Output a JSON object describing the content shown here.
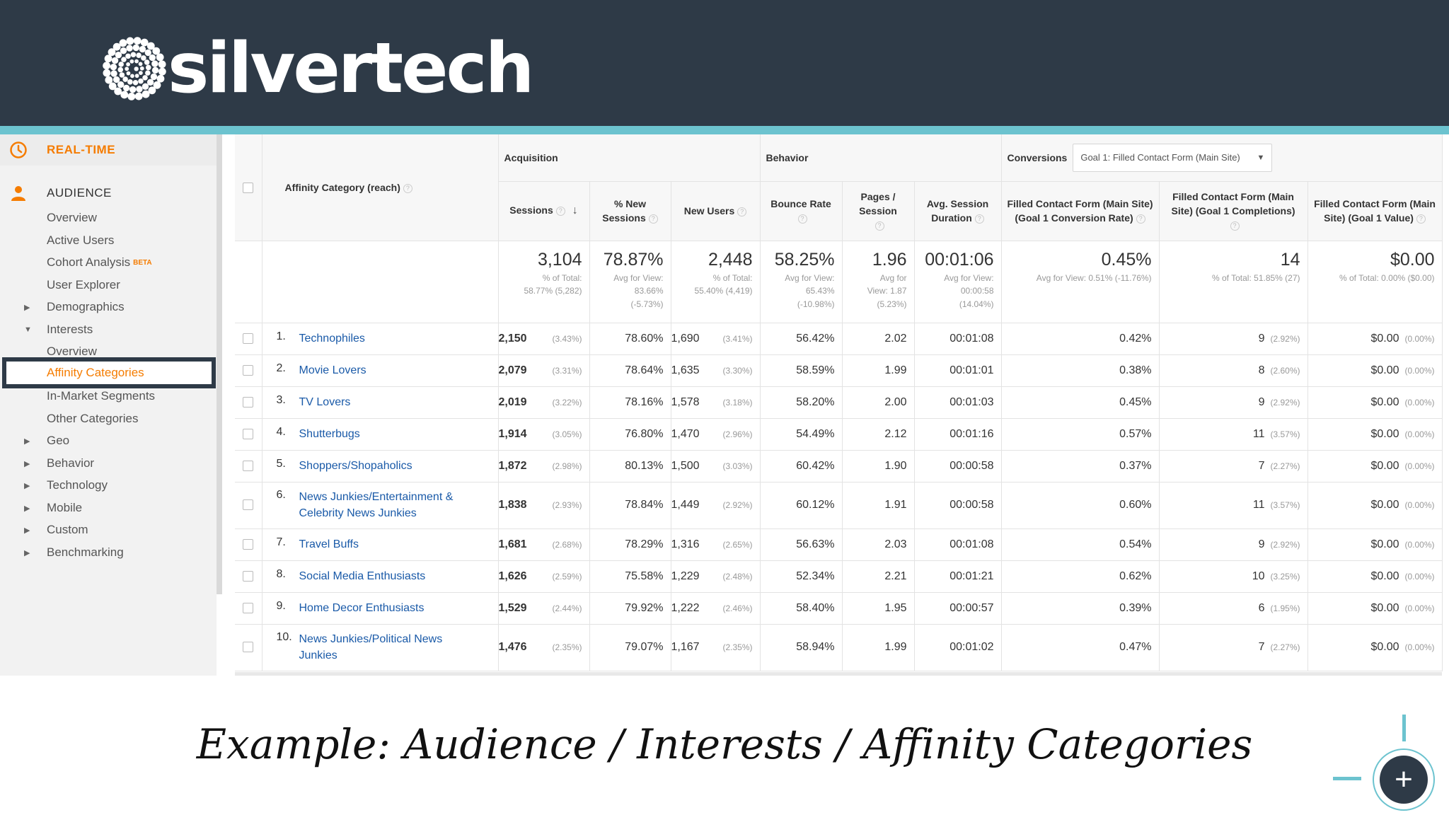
{
  "brand": {
    "name": "silvertech"
  },
  "sidebar": {
    "realtime_label": "REAL-TIME",
    "audience_label": "AUDIENCE",
    "items": [
      {
        "label": "Overview",
        "caret": ""
      },
      {
        "label": "Active Users",
        "caret": ""
      },
      {
        "label": "Cohort Analysis",
        "caret": "",
        "badge": "BETA"
      },
      {
        "label": "User Explorer",
        "caret": ""
      },
      {
        "label": "Demographics",
        "caret": "▶"
      },
      {
        "label": "Interests",
        "caret": "▼"
      },
      {
        "label": "Overview",
        "caret": ""
      },
      {
        "label": "Affinity Categories",
        "caret": ""
      },
      {
        "label": "In-Market Segments",
        "caret": ""
      },
      {
        "label": "Other Categories",
        "caret": ""
      },
      {
        "label": "Geo",
        "caret": "▶"
      },
      {
        "label": "Behavior",
        "caret": "▶"
      },
      {
        "label": "Technology",
        "caret": "▶"
      },
      {
        "label": "Mobile",
        "caret": "▶"
      },
      {
        "label": "Custom",
        "caret": "▶"
      },
      {
        "label": "Benchmarking",
        "caret": "▶"
      }
    ],
    "selected_index": 7
  },
  "table": {
    "dimension_header": "Affinity Category (reach)",
    "groups": {
      "acquisition": "Acquisition",
      "behavior": "Behavior",
      "conversions": "Conversions",
      "goal_select": "Goal 1: Filled Contact Form (Main Site)"
    },
    "columns": {
      "sessions": "Sessions",
      "new_sessions_1": "% New",
      "new_sessions_2": "Sessions",
      "new_users": "New Users",
      "bounce_rate": "Bounce Rate",
      "pages_1": "Pages /",
      "pages_2": "Session",
      "duration_1": "Avg. Session",
      "duration_2": "Duration",
      "conv_rate_1": "Filled Contact Form (Main Site)",
      "conv_rate_2": "(Goal 1 Conversion Rate)",
      "completions_1": "Filled Contact Form (Main",
      "completions_2": "Site) (Goal 1 Completions)",
      "value_1": "Filled Contact Form (Main",
      "value_2": "Site) (Goal 1 Value)"
    },
    "totals": {
      "sessions": "3,104",
      "sessions_sub": "% of Total:\n58.77% (5,282)",
      "new_sessions": "78.87%",
      "new_sessions_sub": "Avg for View:\n83.66%\n(-5.73%)",
      "new_users": "2,448",
      "new_users_sub": "% of Total:\n55.40% (4,419)",
      "bounce_rate": "58.25%",
      "bounce_rate_sub": "Avg for View:\n65.43%\n(-10.98%)",
      "pages": "1.96",
      "pages_sub": "Avg for\nView: 1.87\n(5.23%)",
      "duration": "00:01:06",
      "duration_sub": "Avg for View:\n00:00:58\n(14.04%)",
      "conv_rate": "0.45%",
      "conv_rate_sub": "Avg for View: 0.51% (-11.76%)",
      "completions": "14",
      "completions_sub": "% of Total: 51.85% (27)",
      "value": "$0.00",
      "value_sub": "% of Total: 0.00% ($0.00)"
    },
    "rows": [
      {
        "rank": "1.",
        "category": "Technophiles",
        "sessions": "2,150",
        "sessions_pct": "(3.43%)",
        "new_sessions": "78.60%",
        "new_users": "1,690",
        "new_users_pct": "(3.41%)",
        "bounce_rate": "56.42%",
        "pages": "2.02",
        "duration": "00:01:08",
        "conv_rate": "0.42%",
        "completions": "9",
        "completions_pct": "(2.92%)",
        "value": "$0.00",
        "value_pct": "(0.00%)"
      },
      {
        "rank": "2.",
        "category": "Movie Lovers",
        "sessions": "2,079",
        "sessions_pct": "(3.31%)",
        "new_sessions": "78.64%",
        "new_users": "1,635",
        "new_users_pct": "(3.30%)",
        "bounce_rate": "58.59%",
        "pages": "1.99",
        "duration": "00:01:01",
        "conv_rate": "0.38%",
        "completions": "8",
        "completions_pct": "(2.60%)",
        "value": "$0.00",
        "value_pct": "(0.00%)"
      },
      {
        "rank": "3.",
        "category": "TV Lovers",
        "sessions": "2,019",
        "sessions_pct": "(3.22%)",
        "new_sessions": "78.16%",
        "new_users": "1,578",
        "new_users_pct": "(3.18%)",
        "bounce_rate": "58.20%",
        "pages": "2.00",
        "duration": "00:01:03",
        "conv_rate": "0.45%",
        "completions": "9",
        "completions_pct": "(2.92%)",
        "value": "$0.00",
        "value_pct": "(0.00%)"
      },
      {
        "rank": "4.",
        "category": "Shutterbugs",
        "sessions": "1,914",
        "sessions_pct": "(3.05%)",
        "new_sessions": "76.80%",
        "new_users": "1,470",
        "new_users_pct": "(2.96%)",
        "bounce_rate": "54.49%",
        "pages": "2.12",
        "duration": "00:01:16",
        "conv_rate": "0.57%",
        "completions": "11",
        "completions_pct": "(3.57%)",
        "value": "$0.00",
        "value_pct": "(0.00%)"
      },
      {
        "rank": "5.",
        "category": "Shoppers/Shopaholics",
        "sessions": "1,872",
        "sessions_pct": "(2.98%)",
        "new_sessions": "80.13%",
        "new_users": "1,500",
        "new_users_pct": "(3.03%)",
        "bounce_rate": "60.42%",
        "pages": "1.90",
        "duration": "00:00:58",
        "conv_rate": "0.37%",
        "completions": "7",
        "completions_pct": "(2.27%)",
        "value": "$0.00",
        "value_pct": "(0.00%)"
      },
      {
        "rank": "6.",
        "category": "News Junkies/Entertainment & Celebrity News Junkies",
        "sessions": "1,838",
        "sessions_pct": "(2.93%)",
        "new_sessions": "78.84%",
        "new_users": "1,449",
        "new_users_pct": "(2.92%)",
        "bounce_rate": "60.12%",
        "pages": "1.91",
        "duration": "00:00:58",
        "conv_rate": "0.60%",
        "completions": "11",
        "completions_pct": "(3.57%)",
        "value": "$0.00",
        "value_pct": "(0.00%)"
      },
      {
        "rank": "7.",
        "category": "Travel Buffs",
        "sessions": "1,681",
        "sessions_pct": "(2.68%)",
        "new_sessions": "78.29%",
        "new_users": "1,316",
        "new_users_pct": "(2.65%)",
        "bounce_rate": "56.63%",
        "pages": "2.03",
        "duration": "00:01:08",
        "conv_rate": "0.54%",
        "completions": "9",
        "completions_pct": "(2.92%)",
        "value": "$0.00",
        "value_pct": "(0.00%)"
      },
      {
        "rank": "8.",
        "category": "Social Media Enthusiasts",
        "sessions": "1,626",
        "sessions_pct": "(2.59%)",
        "new_sessions": "75.58%",
        "new_users": "1,229",
        "new_users_pct": "(2.48%)",
        "bounce_rate": "52.34%",
        "pages": "2.21",
        "duration": "00:01:21",
        "conv_rate": "0.62%",
        "completions": "10",
        "completions_pct": "(3.25%)",
        "value": "$0.00",
        "value_pct": "(0.00%)"
      },
      {
        "rank": "9.",
        "category": "Home Decor Enthusiasts",
        "sessions": "1,529",
        "sessions_pct": "(2.44%)",
        "new_sessions": "79.92%",
        "new_users": "1,222",
        "new_users_pct": "(2.46%)",
        "bounce_rate": "58.40%",
        "pages": "1.95",
        "duration": "00:00:57",
        "conv_rate": "0.39%",
        "completions": "6",
        "completions_pct": "(1.95%)",
        "value": "$0.00",
        "value_pct": "(0.00%)"
      },
      {
        "rank": "10.",
        "category": "News Junkies/Political News Junkies",
        "sessions": "1,476",
        "sessions_pct": "(2.35%)",
        "new_sessions": "79.07%",
        "new_users": "1,167",
        "new_users_pct": "(2.35%)",
        "bounce_rate": "58.94%",
        "pages": "1.99",
        "duration": "00:01:02",
        "conv_rate": "0.47%",
        "completions": "7",
        "completions_pct": "(2.27%)",
        "value": "$0.00",
        "value_pct": "(0.00%)"
      }
    ]
  },
  "caption": "Example: Audience / Interests / Affinity Categories",
  "icons": {
    "realtime": "clock-icon",
    "audience": "person-icon",
    "help": "help-icon",
    "sort": "sort-down-arrow-icon",
    "dropdown": "caret-down-icon",
    "plus": "plus-icon"
  },
  "colors": {
    "banner": "#2e3a47",
    "accent_teal": "#6cc3cf",
    "accent_orange": "#f57c00",
    "link_blue": "#1a5aa8"
  }
}
